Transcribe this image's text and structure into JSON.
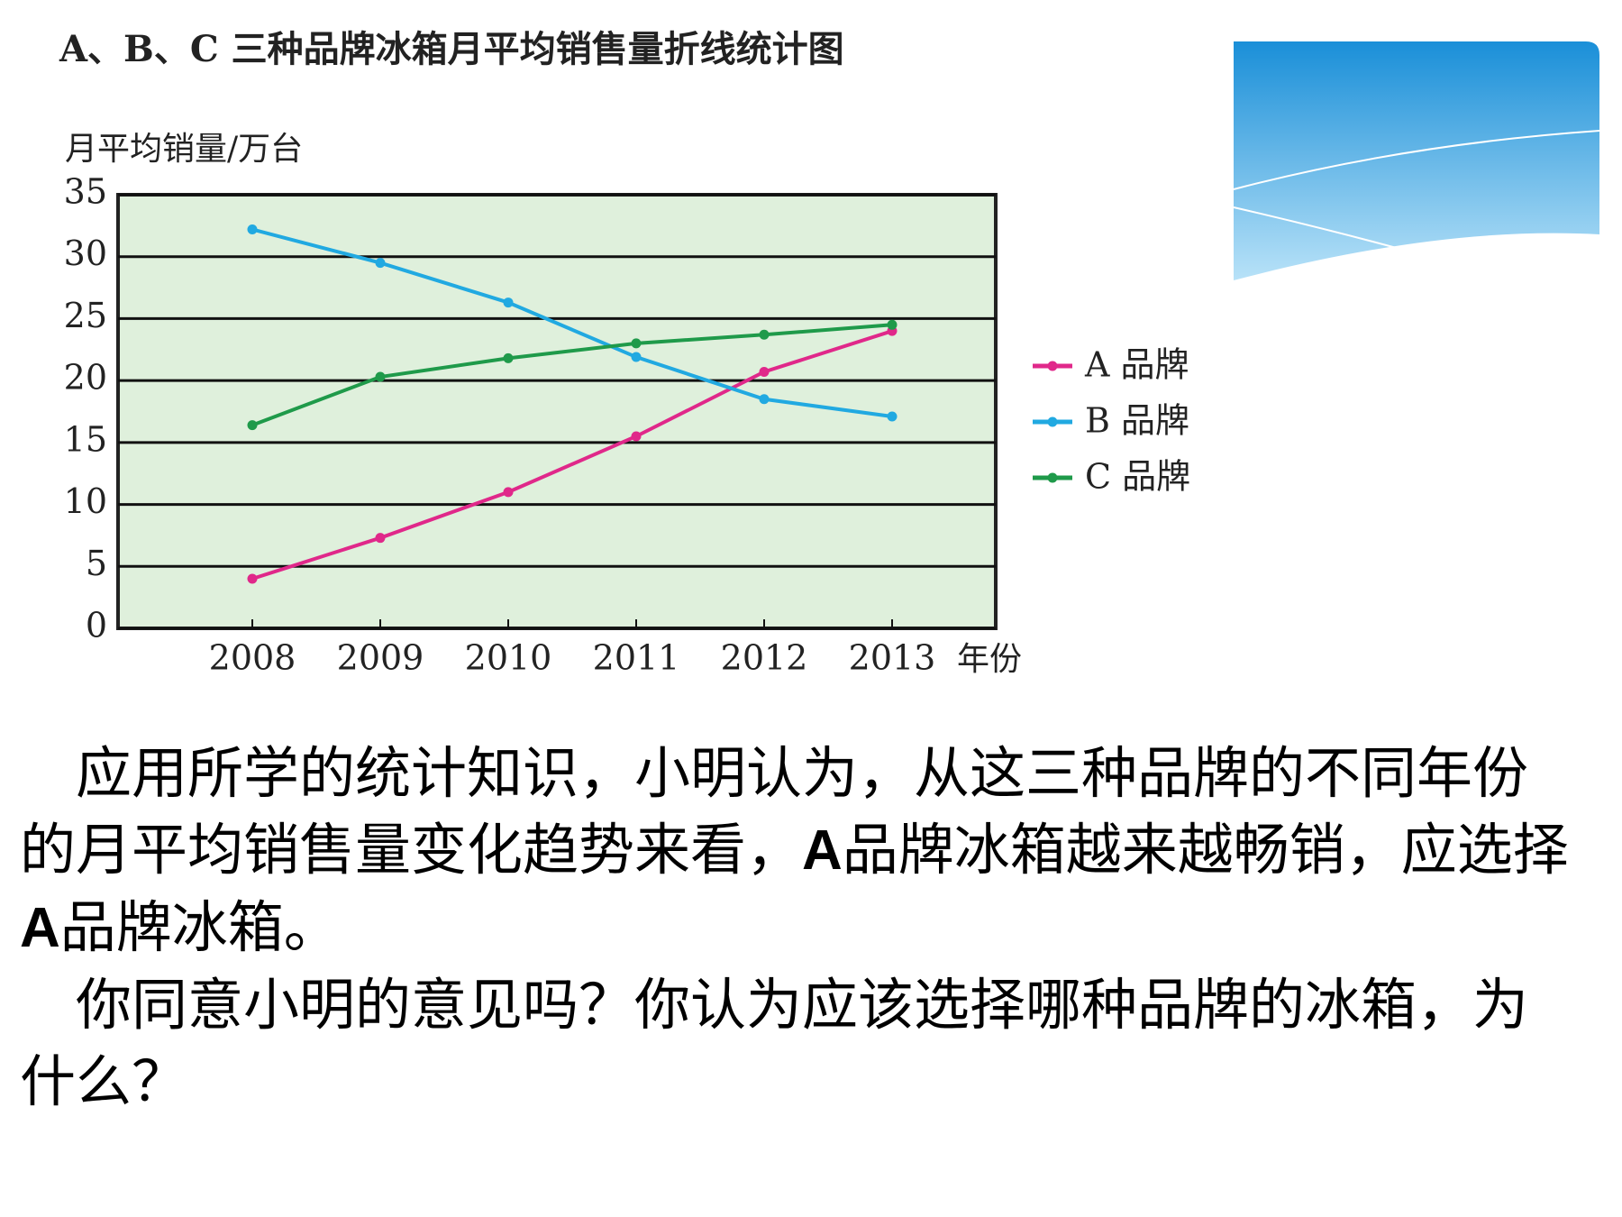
{
  "chart_data": {
    "type": "line",
    "title": "A、B、C 三种品牌冰箱月平均销售量折线统计图",
    "y_label": "月平均销量/万台",
    "x_label": "年份",
    "categories": [
      "2008",
      "2009",
      "2010",
      "2011",
      "2012",
      "2013"
    ],
    "series": [
      {
        "name": "A 品牌",
        "color": "#e0288a",
        "values": [
          4,
          7.3,
          11,
          15.5,
          20.7,
          24
        ]
      },
      {
        "name": "B 品牌",
        "color": "#21a9e1",
        "values": [
          32.2,
          29.5,
          26.3,
          21.9,
          18.5,
          17.1
        ]
      },
      {
        "name": "C 品牌",
        "color": "#1f9a4a",
        "values": [
          16.4,
          20.3,
          21.8,
          23,
          23.7,
          24.5
        ]
      }
    ],
    "ylim": [
      0,
      35
    ],
    "yticks": [
      0,
      5,
      10,
      15,
      20,
      25,
      30,
      35
    ],
    "grid": true,
    "background": "#dff0dc",
    "legend": "right"
  },
  "body": {
    "paragraphs": [
      [
        "应用所学的统计知识，小明认为，从这三种品牌的不同年份的月平均销售量变化趋势来看，",
        "A",
        "品牌冰箱越来越畅销，应选择",
        "A",
        "品牌冰箱。"
      ],
      [
        "你同意小明的意见吗？你认为应该选择哪种品牌的冰箱，为什么？"
      ]
    ]
  }
}
